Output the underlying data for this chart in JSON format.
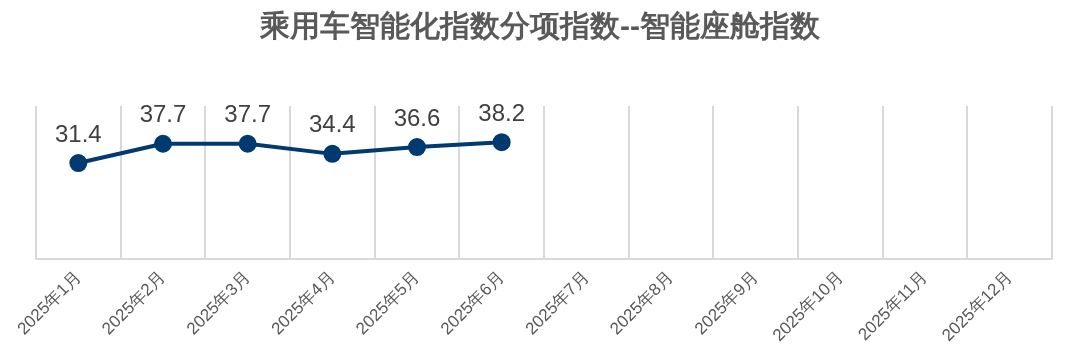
{
  "chart_data": {
    "type": "line",
    "title": "乘用车智能化指数分项指数--智能座舱指数",
    "categories": [
      "2025年1月",
      "2025年2月",
      "2025年3月",
      "2025年4月",
      "2025年5月",
      "2025年6月",
      "2025年7月",
      "2025年8月",
      "2025年9月",
      "2025年10月",
      "2025年11月",
      "2025年12月"
    ],
    "series": [
      {
        "color": "#003a70",
        "values": [
          31.4,
          37.7,
          37.7,
          34.4,
          36.6,
          38.2,
          null,
          null,
          null,
          null,
          null,
          null
        ]
      }
    ],
    "ylim": [
      0,
      50
    ],
    "tick_labels": "x",
    "grid": "x",
    "legend": false,
    "marker": "circle",
    "line_style": "solid",
    "data_labels": true
  }
}
